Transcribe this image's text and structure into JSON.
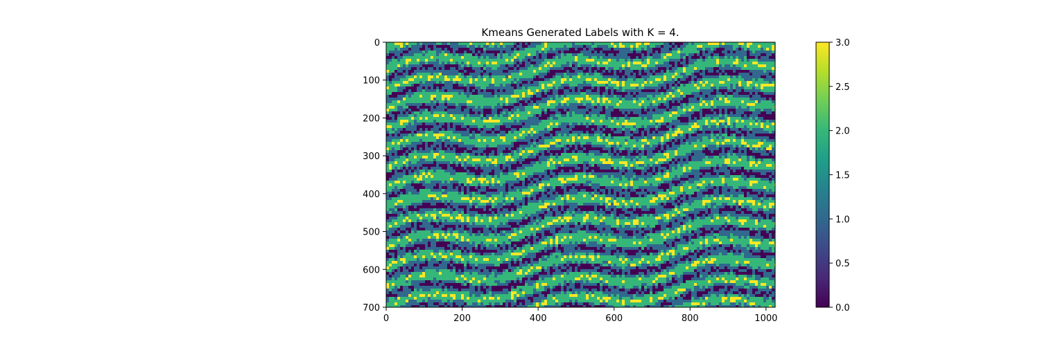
{
  "chart_data": {
    "type": "heatmap",
    "title": "Kmeans Generated Labels with K = 4.",
    "xlabel": "",
    "ylabel": "",
    "xlim": [
      0,
      1024
    ],
    "ylim": [
      700,
      0
    ],
    "x_ticks": [
      0,
      200,
      400,
      600,
      800,
      1000
    ],
    "y_ticks": [
      0,
      100,
      200,
      300,
      400,
      500,
      600,
      700
    ],
    "x_tick_labels": [
      "0",
      "200",
      "400",
      "600",
      "800",
      "1000"
    ],
    "y_tick_labels": [
      "0",
      "100",
      "200",
      "300",
      "400",
      "500",
      "600",
      "700"
    ],
    "cluster_labels": [
      0,
      1,
      2,
      3
    ],
    "colormap": "viridis",
    "cluster_colors": [
      "#440154",
      "#31688e",
      "#35b779",
      "#fde725"
    ],
    "colorbar": {
      "range": [
        0.0,
        3.0
      ],
      "ticks": [
        0.0,
        0.5,
        1.0,
        1.5,
        2.0,
        2.5,
        3.0
      ],
      "tick_labels": [
        "0.0",
        "0.5",
        "1.0",
        "1.5",
        "2.0",
        "2.5",
        "3.0"
      ],
      "gradient_colors": [
        "#440154",
        "#482878",
        "#3e4989",
        "#31688e",
        "#26828e",
        "#1f9e89",
        "#35b779",
        "#6ece58",
        "#b5de2b",
        "#fde725"
      ]
    },
    "grid": false
  }
}
